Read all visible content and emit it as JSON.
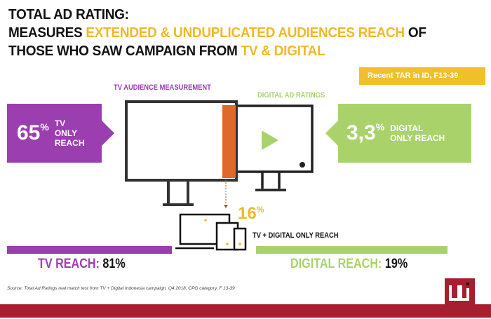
{
  "title": {
    "line1": "TOTAL AD RATING:",
    "line2_a": "MEASURES ",
    "line2_b": "EXTENDED & UNDUPLICATED AUDIENCES REACH",
    "line2_c": " OF",
    "line3_a": "THOSE WHO SAW CAMPAIGN FROM ",
    "line3_b": "TV & DIGITAL"
  },
  "badge": "Recent TAR in ID, F13-39",
  "tv_label": "TV AUDIENCE MEASUREMENT",
  "digital_label": "DIGITAL AD RATINGS",
  "tv_only": {
    "value": "65",
    "unit": "%",
    "label": "TV ONLY REACH"
  },
  "digital_only": {
    "value": "3,3",
    "unit": "%",
    "label": "DIGITAL ONLY REACH"
  },
  "overlap": {
    "value": "16",
    "unit": "%",
    "label": "TV + DIGITAL ONLY REACH"
  },
  "tv_reach": {
    "label": "TV REACH:",
    "value": "81%"
  },
  "digital_reach": {
    "label": "DIGITAL REACH:",
    "value": "19%"
  },
  "source": "Source: Total Ad Ratings real match test from TV + Digital Indonesia campaign, Q4 2018, CPG category, F 13-39",
  "colors": {
    "purple": "#9b3fb0",
    "green": "#a9d36a",
    "yellow": "#f0b92a",
    "orange": "#e0692a",
    "brand": "#a51f2e"
  }
}
